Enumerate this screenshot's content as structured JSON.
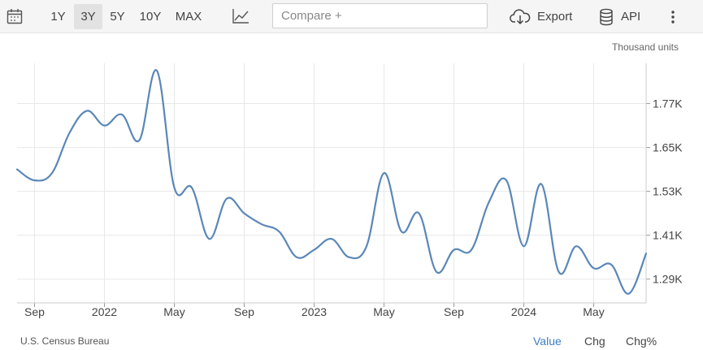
{
  "toolbar": {
    "ranges": [
      {
        "label": "1Y",
        "active": false
      },
      {
        "label": "3Y",
        "active": true
      },
      {
        "label": "5Y",
        "active": false
      },
      {
        "label": "10Y",
        "active": false
      },
      {
        "label": "MAX",
        "active": false
      }
    ],
    "compare_placeholder": "Compare +",
    "export_label": "Export",
    "api_label": "API",
    "icons": [
      "calendar-icon",
      "line-chart-icon",
      "cloud-download-icon",
      "database-icon",
      "more-vertical-icon"
    ]
  },
  "footer": {
    "source": "U.S. Census Bureau",
    "buttons": [
      {
        "label": "Value",
        "active": true
      },
      {
        "label": "Chg",
        "active": false
      },
      {
        "label": "Chg%",
        "active": false
      }
    ]
  },
  "colors": {
    "line": "#5a87b8",
    "grid": "#e8e8e8",
    "active": "#3b7dc4"
  },
  "chart_data": {
    "type": "line",
    "unit_label": "Thousand units",
    "x_tick_labels": [
      "Sep",
      "2022",
      "May",
      "Sep",
      "2023",
      "May",
      "Sep",
      "2024",
      "May"
    ],
    "y_tick_labels": [
      "1.77K",
      "1.65K",
      "1.53K",
      "1.41K",
      "1.29K"
    ],
    "y_ticks": [
      1.77,
      1.65,
      1.53,
      1.41,
      1.29
    ],
    "ylim": [
      1.225,
      1.88
    ],
    "x_first": "2021-08",
    "series": [
      {
        "values": [
          1.59,
          1.56,
          1.58,
          1.69,
          1.75,
          1.71,
          1.74,
          1.67,
          1.86,
          1.54,
          1.54,
          1.4,
          1.51,
          1.47,
          1.44,
          1.42,
          1.35,
          1.37,
          1.4,
          1.35,
          1.38,
          1.58,
          1.42,
          1.47,
          1.31,
          1.37,
          1.37,
          1.5,
          1.56,
          1.38,
          1.55,
          1.31,
          1.38,
          1.32,
          1.33,
          1.25,
          1.36
        ]
      }
    ],
    "grid": true,
    "legend": "none"
  }
}
